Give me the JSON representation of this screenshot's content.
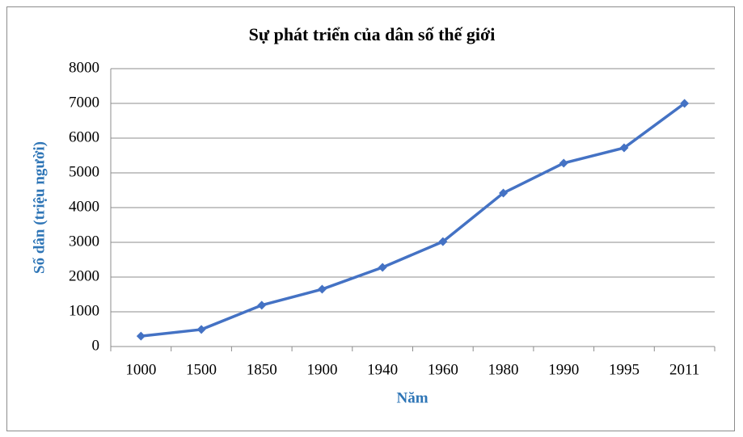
{
  "chart_data": {
    "type": "line",
    "title": "Sự phát triển của dân số thế giới",
    "x_label": "Năm",
    "y_label": "Số dân (triệu người)",
    "categories": [
      "1000",
      "1500",
      "1850",
      "1900",
      "1940",
      "1960",
      "1980",
      "1990",
      "1995",
      "2011"
    ],
    "series": [
      {
        "name": "Số dân",
        "color": "#4472c4",
        "values": [
          300,
          490,
          1190,
          1650,
          2280,
          3020,
          4420,
          5280,
          5720,
          7000
        ]
      }
    ],
    "ylim": [
      0,
      8000
    ],
    "yticks": [
      0,
      1000,
      2000,
      3000,
      4000,
      5000,
      6000,
      7000,
      8000
    ],
    "grid": true
  }
}
